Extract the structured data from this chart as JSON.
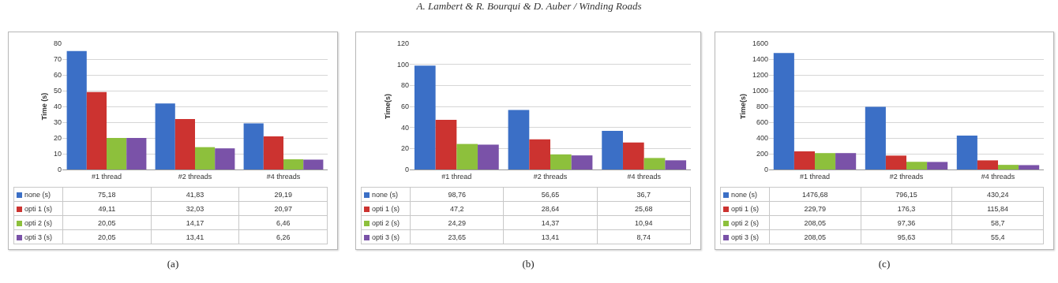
{
  "chart_data": [
    {
      "type": "bar",
      "ylabel": "Time (s)",
      "categories": [
        "#1 thread",
        "#2 threads",
        "#4 threads"
      ],
      "ylim": [
        0,
        80
      ],
      "yticks": [
        0,
        10,
        20,
        30,
        40,
        50,
        60,
        70,
        80
      ],
      "grid": "y",
      "legend": "bottom",
      "annotations": [
        "A. Lambert & R. Bourqui & D. Auber / Winding Roads",
        "(a)"
      ],
      "series": [
        {
          "name": "none (s)",
          "color": "#3b6fc6",
          "values": [
            75.18,
            41.83,
            29.19
          ],
          "value_labels": [
            "75,18",
            "41,83",
            "29,19"
          ]
        },
        {
          "name": "opti 1 (s)",
          "color": "#cc3330",
          "values": [
            49.11,
            32.03,
            20.97
          ],
          "value_labels": [
            "49,11",
            "32,03",
            "20,97"
          ]
        },
        {
          "name": "opti 2 (s)",
          "color": "#8dc03c",
          "values": [
            20.05,
            14.17,
            6.46
          ],
          "value_labels": [
            "20,05",
            "14,17",
            "6,46"
          ]
        },
        {
          "name": "opti 3 (s)",
          "color": "#7a52a8",
          "values": [
            20.05,
            13.41,
            6.26
          ],
          "value_labels": [
            "20,05",
            "13,41",
            "6,26"
          ]
        }
      ]
    },
    {
      "type": "bar",
      "ylabel": "Time(s)",
      "categories": [
        "#1 thread",
        "#2 threads",
        "#4 threads"
      ],
      "ylim": [
        0,
        120
      ],
      "yticks": [
        0,
        20,
        40,
        60,
        80,
        100,
        120
      ],
      "grid": "y",
      "legend": "bottom",
      "annotations": [
        "(b)"
      ],
      "series": [
        {
          "name": "none (s)",
          "color": "#3b6fc6",
          "values": [
            98.76,
            56.65,
            36.7
          ],
          "value_labels": [
            "98,76",
            "56,65",
            "36,7"
          ]
        },
        {
          "name": "opti 1 (s)",
          "color": "#cc3330",
          "values": [
            47.2,
            28.64,
            25.68
          ],
          "value_labels": [
            "47,2",
            "28,64",
            "25,68"
          ]
        },
        {
          "name": "opti 2 (s)",
          "color": "#8dc03c",
          "values": [
            24.29,
            14.37,
            10.94
          ],
          "value_labels": [
            "24,29",
            "14,37",
            "10,94"
          ]
        },
        {
          "name": "opti 3 (s)",
          "color": "#7a52a8",
          "values": [
            23.65,
            13.41,
            8.74
          ],
          "value_labels": [
            "23,65",
            "13,41",
            "8,74"
          ]
        }
      ]
    },
    {
      "type": "bar",
      "ylabel": "Time(s)",
      "categories": [
        "#1 thread",
        "#2 threads",
        "#4 threads"
      ],
      "ylim": [
        0,
        1600
      ],
      "yticks": [
        0,
        200,
        400,
        600,
        800,
        1000,
        1200,
        1400,
        1600
      ],
      "grid": "y",
      "legend": "bottom",
      "annotations": [
        "(c)"
      ],
      "series": [
        {
          "name": "none (s)",
          "color": "#3b6fc6",
          "values": [
            1476.68,
            796.15,
            430.24
          ],
          "value_labels": [
            "1476,68",
            "796,15",
            "430,24"
          ]
        },
        {
          "name": "opti 1 (s)",
          "color": "#cc3330",
          "values": [
            229.79,
            176.3,
            115.84
          ],
          "value_labels": [
            "229,79",
            "176,3",
            "115,84"
          ]
        },
        {
          "name": "opti 2 (s)",
          "color": "#8dc03c",
          "values": [
            208.05,
            97.36,
            58.7
          ],
          "value_labels": [
            "208,05",
            "97,36",
            "58,7"
          ]
        },
        {
          "name": "opti 3 (s)",
          "color": "#7a52a8",
          "values": [
            208.05,
            95.63,
            55.4
          ],
          "value_labels": [
            "208,05",
            "95,63",
            "55,4"
          ]
        }
      ]
    }
  ]
}
